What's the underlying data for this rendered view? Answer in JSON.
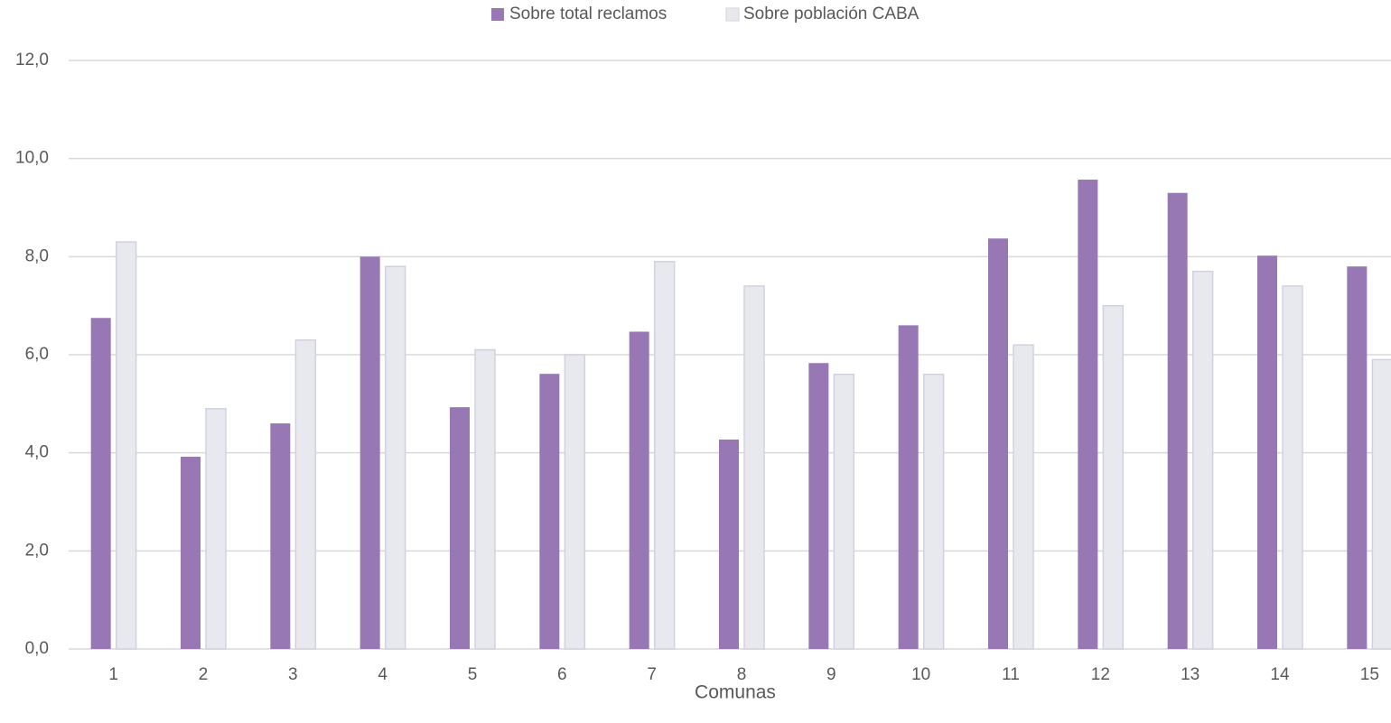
{
  "colors": {
    "series1": "#9778b5",
    "series2": "#e8e8ef",
    "series2_stroke": "#d2d2df",
    "grid": "#d9d9d9",
    "text": "#595959"
  },
  "chart_data": {
    "type": "bar",
    "title": "",
    "xlabel": "Comunas",
    "ylabel": "",
    "ylim": [
      0,
      12
    ],
    "yticks": [
      "0,0",
      "2,0",
      "4,0",
      "6,0",
      "8,0",
      "10,0",
      "12,0"
    ],
    "grid": true,
    "legend_position": "top-center",
    "categories": [
      "1",
      "2",
      "3",
      "4",
      "5",
      "6",
      "7",
      "8",
      "9",
      "10",
      "11",
      "12",
      "13",
      "14",
      "15"
    ],
    "series": [
      {
        "name": "Sobre total reclamos",
        "values": [
          6.75,
          3.92,
          4.6,
          8.0,
          4.93,
          5.61,
          6.47,
          4.27,
          5.83,
          6.6,
          8.37,
          9.57,
          9.3,
          8.02,
          7.8
        ]
      },
      {
        "name": "Sobre población CABA",
        "values": [
          8.3,
          4.9,
          6.3,
          7.8,
          6.1,
          6.0,
          7.9,
          7.4,
          5.6,
          5.6,
          6.2,
          7.0,
          7.7,
          7.4,
          5.9
        ]
      }
    ]
  }
}
